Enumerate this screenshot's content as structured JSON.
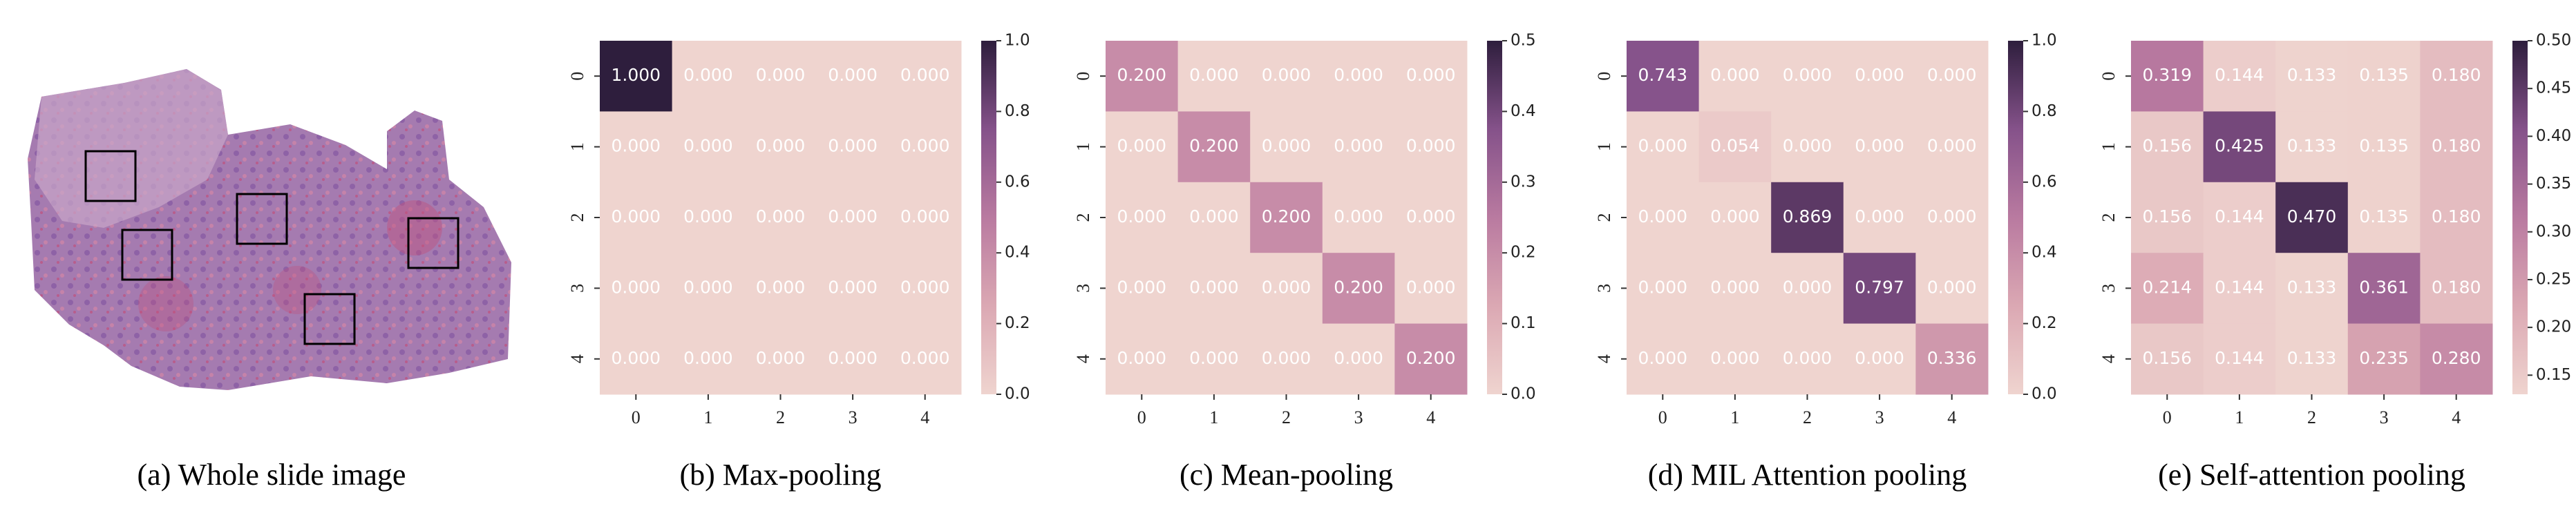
{
  "image_panel": {
    "caption": "(a) Whole slide image"
  },
  "chart_data": [
    {
      "type": "heatmap",
      "title": "(b) Max-pooling",
      "categories": [
        "0",
        "1",
        "2",
        "3",
        "4"
      ],
      "y_categories": [
        "0",
        "1",
        "2",
        "3",
        "4"
      ],
      "values": [
        [
          1,
          0,
          0,
          0,
          0
        ],
        [
          0,
          0,
          0,
          0,
          0
        ],
        [
          0,
          0,
          0,
          0,
          0
        ],
        [
          0,
          0,
          0,
          0,
          0
        ],
        [
          0,
          0,
          0,
          0,
          0
        ]
      ],
      "value_labels": [
        [
          "1.000",
          "0.000",
          "0.000",
          "0.000",
          "0.000"
        ],
        [
          "0.000",
          "0.000",
          "0.000",
          "0.000",
          "0.000"
        ],
        [
          "0.000",
          "0.000",
          "0.000",
          "0.000",
          "0.000"
        ],
        [
          "0.000",
          "0.000",
          "0.000",
          "0.000",
          "0.000"
        ],
        [
          "0.000",
          "0.000",
          "0.000",
          "0.000",
          "0.000"
        ]
      ],
      "zlim": [
        0,
        1
      ],
      "zticks": [
        {
          "value": 0,
          "label": "0.0"
        },
        0.2,
        0.4,
        0.6,
        0.8,
        {
          "value": 1,
          "label": "1.0"
        }
      ],
      "colormap": [
        "#efd4cf",
        "#dba8b3",
        "#b97aa0",
        "#85528a",
        "#2e1e3d"
      ]
    },
    {
      "type": "heatmap",
      "title": "(c) Mean-pooling",
      "categories": [
        "0",
        "1",
        "2",
        "3",
        "4"
      ],
      "y_categories": [
        "0",
        "1",
        "2",
        "3",
        "4"
      ],
      "values": [
        [
          0.2,
          0,
          0,
          0,
          0
        ],
        [
          0,
          0.2,
          0,
          0,
          0
        ],
        [
          0,
          0,
          0.2,
          0,
          0
        ],
        [
          0,
          0,
          0,
          0.2,
          0
        ],
        [
          0,
          0,
          0,
          0,
          0.2
        ]
      ],
      "value_labels": [
        [
          "0.200",
          "0.000",
          "0.000",
          "0.000",
          "0.000"
        ],
        [
          "0.000",
          "0.200",
          "0.000",
          "0.000",
          "0.000"
        ],
        [
          "0.000",
          "0.000",
          "0.200",
          "0.000",
          "0.000"
        ],
        [
          "0.000",
          "0.000",
          "0.000",
          "0.200",
          "0.000"
        ],
        [
          "0.000",
          "0.000",
          "0.000",
          "0.000",
          "0.200"
        ]
      ],
      "zlim": [
        0,
        0.5
      ],
      "zticks": [
        {
          "value": 0,
          "label": "0.0"
        },
        0.1,
        0.2,
        0.3,
        0.4,
        0.5
      ],
      "colormap": [
        "#efd4cf",
        "#dba8b3",
        "#b97aa0",
        "#85528a",
        "#2e1e3d"
      ]
    },
    {
      "type": "heatmap",
      "title": "(d) MIL Attention pooling",
      "categories": [
        "0",
        "1",
        "2",
        "3",
        "4"
      ],
      "y_categories": [
        "0",
        "1",
        "2",
        "3",
        "4"
      ],
      "values": [
        [
          0.743,
          0,
          0,
          0,
          0
        ],
        [
          0,
          0.054,
          0,
          0,
          0
        ],
        [
          0,
          0,
          0.869,
          0,
          0
        ],
        [
          0,
          0,
          0,
          0.797,
          0
        ],
        [
          0,
          0,
          0,
          0,
          0.336
        ]
      ],
      "value_labels": [
        [
          "0.743",
          "0.000",
          "0.000",
          "0.000",
          "0.000"
        ],
        [
          "0.000",
          "0.054",
          "0.000",
          "0.000",
          "0.000"
        ],
        [
          "0.000",
          "0.000",
          "0.869",
          "0.000",
          "0.000"
        ],
        [
          "0.000",
          "0.000",
          "0.000",
          "0.797",
          "0.000"
        ],
        [
          "0.000",
          "0.000",
          "0.000",
          "0.000",
          "0.336"
        ]
      ],
      "zlim": [
        0,
        1
      ],
      "zticks": [
        {
          "value": 0,
          "label": "0.0"
        },
        0.2,
        0.4,
        0.6,
        0.8,
        {
          "value": 1,
          "label": "1.0"
        }
      ],
      "colormap": [
        "#efd4cf",
        "#dba8b3",
        "#b97aa0",
        "#85528a",
        "#2e1e3d"
      ]
    },
    {
      "type": "heatmap",
      "title": "(e) Self-attention pooling",
      "categories": [
        "0",
        "1",
        "2",
        "3",
        "4"
      ],
      "y_categories": [
        "0",
        "1",
        "2",
        "3",
        "4"
      ],
      "values": [
        [
          0.319,
          0.144,
          0.133,
          0.135,
          0.18
        ],
        [
          0.156,
          0.425,
          0.133,
          0.135,
          0.18
        ],
        [
          0.156,
          0.144,
          0.47,
          0.135,
          0.18
        ],
        [
          0.214,
          0.144,
          0.133,
          0.361,
          0.18
        ],
        [
          0.156,
          0.144,
          0.133,
          0.235,
          0.28
        ]
      ],
      "value_labels": [
        [
          "0.319",
          "0.144",
          "0.133",
          "0.135",
          "0.180"
        ],
        [
          "0.156",
          "0.425",
          "0.133",
          "0.135",
          "0.180"
        ],
        [
          "0.156",
          "0.144",
          "0.470",
          "0.135",
          "0.180"
        ],
        [
          "0.214",
          "0.144",
          "0.133",
          "0.361",
          "0.180"
        ],
        [
          "0.156",
          "0.144",
          "0.133",
          "0.235",
          "0.280"
        ]
      ],
      "zlim": [
        0.13,
        0.5
      ],
      "zticks": [
        0.15,
        {
          "value": 0.2,
          "label": "0.20"
        },
        0.25,
        {
          "value": 0.3,
          "label": "0.30"
        },
        0.35,
        {
          "value": 0.4,
          "label": "0.40"
        },
        0.45,
        {
          "value": 0.5,
          "label": "0.50"
        }
      ],
      "colormap": [
        "#efd4cf",
        "#dba8b3",
        "#b97aa0",
        "#85528a",
        "#2e1e3d"
      ]
    }
  ]
}
